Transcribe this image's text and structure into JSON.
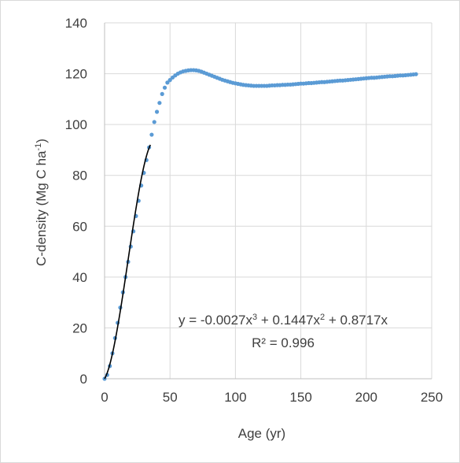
{
  "chart_data": {
    "type": "scatter",
    "xlabel": "Age (yr)",
    "ylabel_parts": {
      "main": "C-density (Mg C ha",
      "sup": "-1",
      "tail": ")"
    },
    "xlim": [
      0,
      250
    ],
    "ylim": [
      0,
      140
    ],
    "x_ticks": [
      0,
      50,
      100,
      150,
      200,
      250
    ],
    "y_ticks": [
      0,
      20,
      40,
      60,
      80,
      100,
      120,
      140
    ],
    "grid": "horizontal",
    "legend": "none",
    "series": [
      {
        "color": "#5b9bd5",
        "marker": "circle",
        "x": [
          0,
          2,
          4,
          6,
          8,
          10,
          12,
          14,
          16,
          18,
          20,
          22,
          24,
          26,
          28,
          30,
          32,
          34,
          36,
          38,
          40,
          42,
          44,
          46,
          48,
          50,
          52,
          54,
          56,
          58,
          60,
          62,
          64,
          66,
          68,
          70,
          72,
          74,
          76,
          78,
          80,
          82,
          84,
          86,
          88,
          90,
          92,
          94,
          96,
          98,
          100,
          102,
          104,
          106,
          108,
          110,
          112,
          114,
          116,
          118,
          120,
          122,
          124,
          126,
          128,
          130,
          132,
          134,
          136,
          138,
          140,
          142,
          144,
          146,
          148,
          150,
          152,
          154,
          156,
          158,
          160,
          162,
          164,
          166,
          168,
          170,
          172,
          174,
          176,
          178,
          180,
          182,
          184,
          186,
          188,
          190,
          192,
          194,
          196,
          198,
          200,
          202,
          204,
          206,
          208,
          210,
          212,
          214,
          216,
          218,
          220,
          222,
          224,
          226,
          228,
          230,
          232,
          234,
          236,
          238
        ],
        "y": [
          0,
          1.5,
          5,
          10,
          16,
          22,
          28,
          34,
          40,
          46,
          52,
          58,
          64,
          70,
          76,
          81,
          86,
          91,
          96,
          101,
          105,
          108.5,
          112,
          114.5,
          116.5,
          117.5,
          118.5,
          119.3,
          120,
          120.5,
          120.9,
          121.1,
          121.3,
          121.4,
          121.4,
          121.3,
          121.1,
          120.8,
          120.4,
          120,
          119.6,
          119.2,
          118.8,
          118.4,
          118,
          117.6,
          117.3,
          117,
          116.7,
          116.4,
          116.2,
          116,
          115.8,
          115.6,
          115.5,
          115.4,
          115.3,
          115.2,
          115.2,
          115.2,
          115.2,
          115.2,
          115.2,
          115.3,
          115.4,
          115.4,
          115.5,
          115.5,
          115.6,
          115.6,
          115.7,
          115.7,
          115.8,
          115.9,
          116,
          116.1,
          116.1,
          116.2,
          116.3,
          116.3,
          116.4,
          116.5,
          116.6,
          116.7,
          116.7,
          116.8,
          116.9,
          117,
          117.1,
          117.2,
          117.3,
          117.3,
          117.4,
          117.5,
          117.6,
          117.7,
          117.8,
          117.9,
          118,
          118.1,
          118.2,
          118.3,
          118.4,
          118.4,
          118.5,
          118.6,
          118.7,
          118.8,
          118.9,
          119,
          119,
          119.1,
          119.2,
          119.3,
          119.3,
          119.4,
          119.5,
          119.6,
          119.7,
          119.8
        ]
      }
    ],
    "trendline": {
      "type": "polynomial",
      "order": 3,
      "coefficients": {
        "a3": -0.0027,
        "a2": 0.1447,
        "a1": 0.8717,
        "a0": 0
      },
      "x_range": [
        0,
        35
      ],
      "color": "#000000"
    },
    "annotations": {
      "equation_parts": {
        "p1": "y = -0.0027x",
        "s1": "3",
        "p2": " + 0.1447x",
        "s2": "2",
        "p3": " + 0.8717x"
      },
      "r_squared": "R² = 0.996"
    }
  }
}
